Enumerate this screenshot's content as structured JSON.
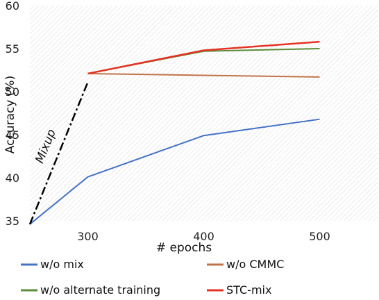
{
  "chart_data": {
    "type": "line",
    "title": "",
    "xlabel": "# epochs",
    "ylabel": "Accuracy (%)",
    "xlim": [
      250,
      550
    ],
    "ylim": [
      35,
      60
    ],
    "x_ticks": [
      300,
      400,
      500
    ],
    "y_ticks": [
      35,
      40,
      45,
      50,
      55,
      60
    ],
    "grid": false,
    "background_pattern": "diagonal-hatch",
    "legend_position": "bottom",
    "series": [
      {
        "name": "w/o mix",
        "color": "#4472C4",
        "x": [
          250,
          300,
          400,
          500
        ],
        "y": [
          34.6,
          40.1,
          44.9,
          46.8
        ]
      },
      {
        "name": "w/o CMMC",
        "color": "#C0734A",
        "x": [
          300,
          400,
          500
        ],
        "y": [
          52.1,
          51.9,
          51.7
        ]
      },
      {
        "name": "w/o alternate training",
        "color": "#5B8C3A",
        "x": [
          300,
          400,
          500
        ],
        "y": [
          52.1,
          54.7,
          55.0
        ]
      },
      {
        "name": "STC-mix",
        "color": "#E53224",
        "x": [
          300,
          400,
          500
        ],
        "y": [
          52.1,
          54.8,
          55.8
        ]
      }
    ],
    "annotations": [
      {
        "text": "Mixup",
        "style": "dash-dot",
        "color": "#000000",
        "x": [
          250,
          300
        ],
        "y": [
          34.6,
          51.1
        ]
      }
    ]
  }
}
